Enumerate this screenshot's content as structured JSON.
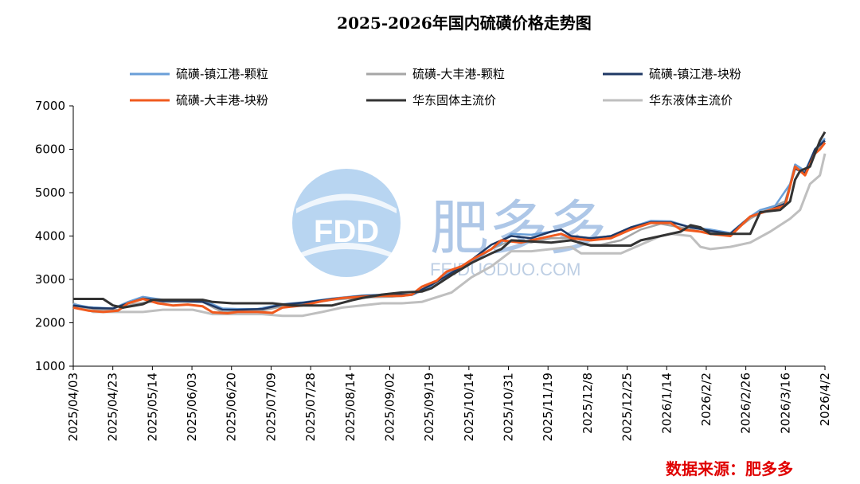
{
  "chart_data": {
    "type": "line",
    "title": "2025-2026年国内硫磺价格走势图",
    "ylim": [
      1000,
      7000
    ],
    "yticks": [
      1000,
      2000,
      3000,
      4000,
      5000,
      6000,
      7000
    ],
    "x_tick_labels": [
      "2025/04/03",
      "2025/04/23",
      "2025/05/14",
      "2025/06/03",
      "2025/06/20",
      "2025/07/09",
      "2025/07/28",
      "2025/08/14",
      "2025/09/02",
      "2025/09/19",
      "2025/10/14",
      "2025/10/31",
      "2025/11/19",
      "2025/12/8",
      "2025/12/25",
      "2026/1/14",
      "2026/2/2",
      "2026/2/26",
      "2026/3/16",
      "2026/4/2"
    ],
    "n_points": 100,
    "series": [
      {
        "name": "硫磺-镇江港-颗粒",
        "color": "#6a9fd8",
        "width": 2.5,
        "anchors": [
          [
            0,
            2430
          ],
          [
            3,
            2360
          ],
          [
            8,
            2330
          ],
          [
            11,
            2480
          ],
          [
            14,
            2600
          ],
          [
            18,
            2530
          ],
          [
            22,
            2520
          ],
          [
            26,
            2520
          ],
          [
            30,
            2330
          ],
          [
            33,
            2320
          ],
          [
            37,
            2320
          ],
          [
            42,
            2430
          ],
          [
            46,
            2470
          ],
          [
            52,
            2560
          ],
          [
            58,
            2630
          ],
          [
            64,
            2660
          ],
          [
            68,
            2640
          ],
          [
            72,
            2860
          ],
          [
            74,
            3080
          ],
          [
            78,
            3300
          ],
          [
            82,
            3550
          ],
          [
            86,
            3850
          ],
          [
            88,
            4050
          ],
          [
            92,
            4030
          ],
          [
            96,
            4100
          ],
          [
            98,
            4150
          ],
          [
            100,
            4000
          ],
          [
            104,
            3950
          ],
          [
            108,
            4000
          ],
          [
            112,
            4200
          ],
          [
            116,
            4350
          ],
          [
            120,
            4340
          ],
          [
            124,
            4200
          ],
          [
            128,
            4150
          ],
          [
            132,
            4070
          ],
          [
            136,
            4450
          ],
          [
            138,
            4600
          ],
          [
            141,
            4700
          ],
          [
            144,
            5200
          ],
          [
            145,
            5650
          ],
          [
            147,
            5500
          ],
          [
            149,
            6000
          ],
          [
            151,
            6250
          ]
        ]
      },
      {
        "name": "硫磺-大丰港-颗粒",
        "color": "#a6a6a6",
        "width": 2.5,
        "anchors": [
          [
            0,
            2400
          ],
          [
            5,
            2300
          ],
          [
            9,
            2300
          ],
          [
            12,
            2430
          ],
          [
            15,
            2480
          ],
          [
            20,
            2480
          ],
          [
            26,
            2480
          ],
          [
            30,
            2240
          ],
          [
            34,
            2260
          ],
          [
            38,
            2280
          ],
          [
            42,
            2380
          ],
          [
            46,
            2420
          ],
          [
            52,
            2530
          ],
          [
            58,
            2580
          ],
          [
            64,
            2600
          ],
          [
            68,
            2640
          ],
          [
            72,
            2820
          ],
          [
            76,
            3100
          ],
          [
            80,
            3400
          ],
          [
            84,
            3700
          ],
          [
            88,
            3900
          ],
          [
            92,
            3850
          ],
          [
            96,
            3950
          ],
          [
            100,
            3950
          ],
          [
            102,
            3800
          ],
          [
            106,
            3800
          ],
          [
            110,
            3900
          ],
          [
            114,
            4150
          ],
          [
            118,
            4280
          ],
          [
            122,
            4200
          ],
          [
            126,
            4100
          ],
          [
            132,
            4050
          ],
          [
            136,
            4400
          ],
          [
            140,
            4650
          ],
          [
            143,
            4800
          ],
          [
            145,
            5600
          ],
          [
            147,
            5450
          ],
          [
            149,
            5900
          ],
          [
            151,
            6200
          ]
        ]
      },
      {
        "name": "硫磺-镇江港-块粉",
        "color": "#1f3864",
        "width": 2.5,
        "anchors": [
          [
            0,
            2400
          ],
          [
            4,
            2340
          ],
          [
            8,
            2330
          ],
          [
            11,
            2450
          ],
          [
            14,
            2560
          ],
          [
            18,
            2500
          ],
          [
            22,
            2500
          ],
          [
            26,
            2480
          ],
          [
            30,
            2300
          ],
          [
            33,
            2300
          ],
          [
            38,
            2320
          ],
          [
            42,
            2420
          ],
          [
            46,
            2460
          ],
          [
            52,
            2550
          ],
          [
            58,
            2620
          ],
          [
            64,
            2650
          ],
          [
            68,
            2650
          ],
          [
            72,
            2880
          ],
          [
            76,
            3150
          ],
          [
            80,
            3450
          ],
          [
            84,
            3800
          ],
          [
            88,
            4000
          ],
          [
            92,
            3950
          ],
          [
            96,
            4100
          ],
          [
            98,
            4150
          ],
          [
            100,
            4000
          ],
          [
            104,
            3950
          ],
          [
            108,
            4000
          ],
          [
            112,
            4200
          ],
          [
            116,
            4320
          ],
          [
            120,
            4320
          ],
          [
            124,
            4200
          ],
          [
            128,
            4120
          ],
          [
            132,
            4050
          ],
          [
            136,
            4450
          ],
          [
            140,
            4600
          ],
          [
            143,
            4750
          ],
          [
            145,
            5550
          ],
          [
            147,
            5450
          ],
          [
            149,
            6000
          ],
          [
            151,
            6200
          ]
        ]
      },
      {
        "name": "硫磺-大丰港-块粉",
        "color": "#f05a1e",
        "width": 3,
        "anchors": [
          [
            0,
            2350
          ],
          [
            3,
            2280
          ],
          [
            6,
            2250
          ],
          [
            9,
            2280
          ],
          [
            11,
            2450
          ],
          [
            14,
            2550
          ],
          [
            17,
            2450
          ],
          [
            20,
            2400
          ],
          [
            23,
            2420
          ],
          [
            26,
            2380
          ],
          [
            28,
            2240
          ],
          [
            31,
            2220
          ],
          [
            33,
            2250
          ],
          [
            37,
            2250
          ],
          [
            40,
            2230
          ],
          [
            42,
            2350
          ],
          [
            46,
            2400
          ],
          [
            50,
            2500
          ],
          [
            54,
            2570
          ],
          [
            58,
            2600
          ],
          [
            62,
            2620
          ],
          [
            66,
            2620
          ],
          [
            68,
            2650
          ],
          [
            70,
            2830
          ],
          [
            73,
            2970
          ],
          [
            75,
            3180
          ],
          [
            78,
            3300
          ],
          [
            80,
            3450
          ],
          [
            84,
            3700
          ],
          [
            86,
            3900
          ],
          [
            90,
            3850
          ],
          [
            94,
            3950
          ],
          [
            98,
            4050
          ],
          [
            100,
            3950
          ],
          [
            104,
            3900
          ],
          [
            108,
            3950
          ],
          [
            112,
            4150
          ],
          [
            116,
            4300
          ],
          [
            120,
            4300
          ],
          [
            122,
            4150
          ],
          [
            126,
            4100
          ],
          [
            128,
            4050
          ],
          [
            132,
            4000
          ],
          [
            136,
            4450
          ],
          [
            140,
            4600
          ],
          [
            143,
            4700
          ],
          [
            145,
            5600
          ],
          [
            147,
            5400
          ],
          [
            149,
            5900
          ],
          [
            150,
            6000
          ],
          [
            151,
            6150
          ]
        ]
      },
      {
        "name": "华东固体主流价",
        "color": "#333333",
        "width": 3,
        "anchors": [
          [
            0,
            2550
          ],
          [
            6,
            2550
          ],
          [
            8,
            2400
          ],
          [
            10,
            2350
          ],
          [
            14,
            2430
          ],
          [
            16,
            2530
          ],
          [
            26,
            2530
          ],
          [
            28,
            2480
          ],
          [
            32,
            2450
          ],
          [
            40,
            2450
          ],
          [
            44,
            2400
          ],
          [
            52,
            2400
          ],
          [
            56,
            2520
          ],
          [
            58,
            2570
          ],
          [
            62,
            2650
          ],
          [
            66,
            2700
          ],
          [
            70,
            2720
          ],
          [
            72,
            2800
          ],
          [
            76,
            3100
          ],
          [
            80,
            3380
          ],
          [
            84,
            3600
          ],
          [
            86,
            3700
          ],
          [
            88,
            3900
          ],
          [
            96,
            3850
          ],
          [
            100,
            3900
          ],
          [
            104,
            3780
          ],
          [
            112,
            3780
          ],
          [
            114,
            3900
          ],
          [
            118,
            4000
          ],
          [
            122,
            4100
          ],
          [
            124,
            4250
          ],
          [
            126,
            4200
          ],
          [
            128,
            4050
          ],
          [
            136,
            4050
          ],
          [
            138,
            4550
          ],
          [
            142,
            4600
          ],
          [
            144,
            4800
          ],
          [
            145,
            5300
          ],
          [
            146,
            5500
          ],
          [
            148,
            5600
          ],
          [
            150,
            6200
          ],
          [
            151,
            6400
          ]
        ]
      },
      {
        "name": "华东液体主流价",
        "color": "#bfbfbf",
        "width": 3,
        "anchors": [
          [
            0,
            2450
          ],
          [
            4,
            2250
          ],
          [
            8,
            2250
          ],
          [
            14,
            2250
          ],
          [
            18,
            2300
          ],
          [
            24,
            2300
          ],
          [
            28,
            2200
          ],
          [
            34,
            2200
          ],
          [
            38,
            2200
          ],
          [
            42,
            2160
          ],
          [
            46,
            2160
          ],
          [
            50,
            2250
          ],
          [
            54,
            2350
          ],
          [
            58,
            2400
          ],
          [
            62,
            2450
          ],
          [
            66,
            2450
          ],
          [
            70,
            2480
          ],
          [
            76,
            2700
          ],
          [
            80,
            3050
          ],
          [
            84,
            3300
          ],
          [
            88,
            3650
          ],
          [
            92,
            3650
          ],
          [
            96,
            3700
          ],
          [
            100,
            3750
          ],
          [
            102,
            3600
          ],
          [
            110,
            3600
          ],
          [
            114,
            3800
          ],
          [
            118,
            4000
          ],
          [
            120,
            4050
          ],
          [
            124,
            4000
          ],
          [
            126,
            3750
          ],
          [
            128,
            3700
          ],
          [
            132,
            3750
          ],
          [
            136,
            3850
          ],
          [
            140,
            4100
          ],
          [
            144,
            4400
          ],
          [
            146,
            4600
          ],
          [
            148,
            5200
          ],
          [
            150,
            5400
          ],
          [
            151,
            5900
          ]
        ]
      }
    ]
  },
  "legend": [
    {
      "label": "硫磺-镇江港-颗粒",
      "color": "#6a9fd8"
    },
    {
      "label": "硫磺-大丰港-颗粒",
      "color": "#a6a6a6"
    },
    {
      "label": "硫磺-镇江港-块粉",
      "color": "#1f3864"
    },
    {
      "label": "硫磺-大丰港-块粉",
      "color": "#f05a1e"
    },
    {
      "label": "华东固体主流价",
      "color": "#333333"
    },
    {
      "label": "华东液体主流价",
      "color": "#bfbfbf"
    }
  ],
  "watermark": {
    "logo_text": "FDD",
    "name": "肥多多",
    "url": "FEIDUODUO.COM"
  },
  "source_text": "数据来源：肥多多"
}
